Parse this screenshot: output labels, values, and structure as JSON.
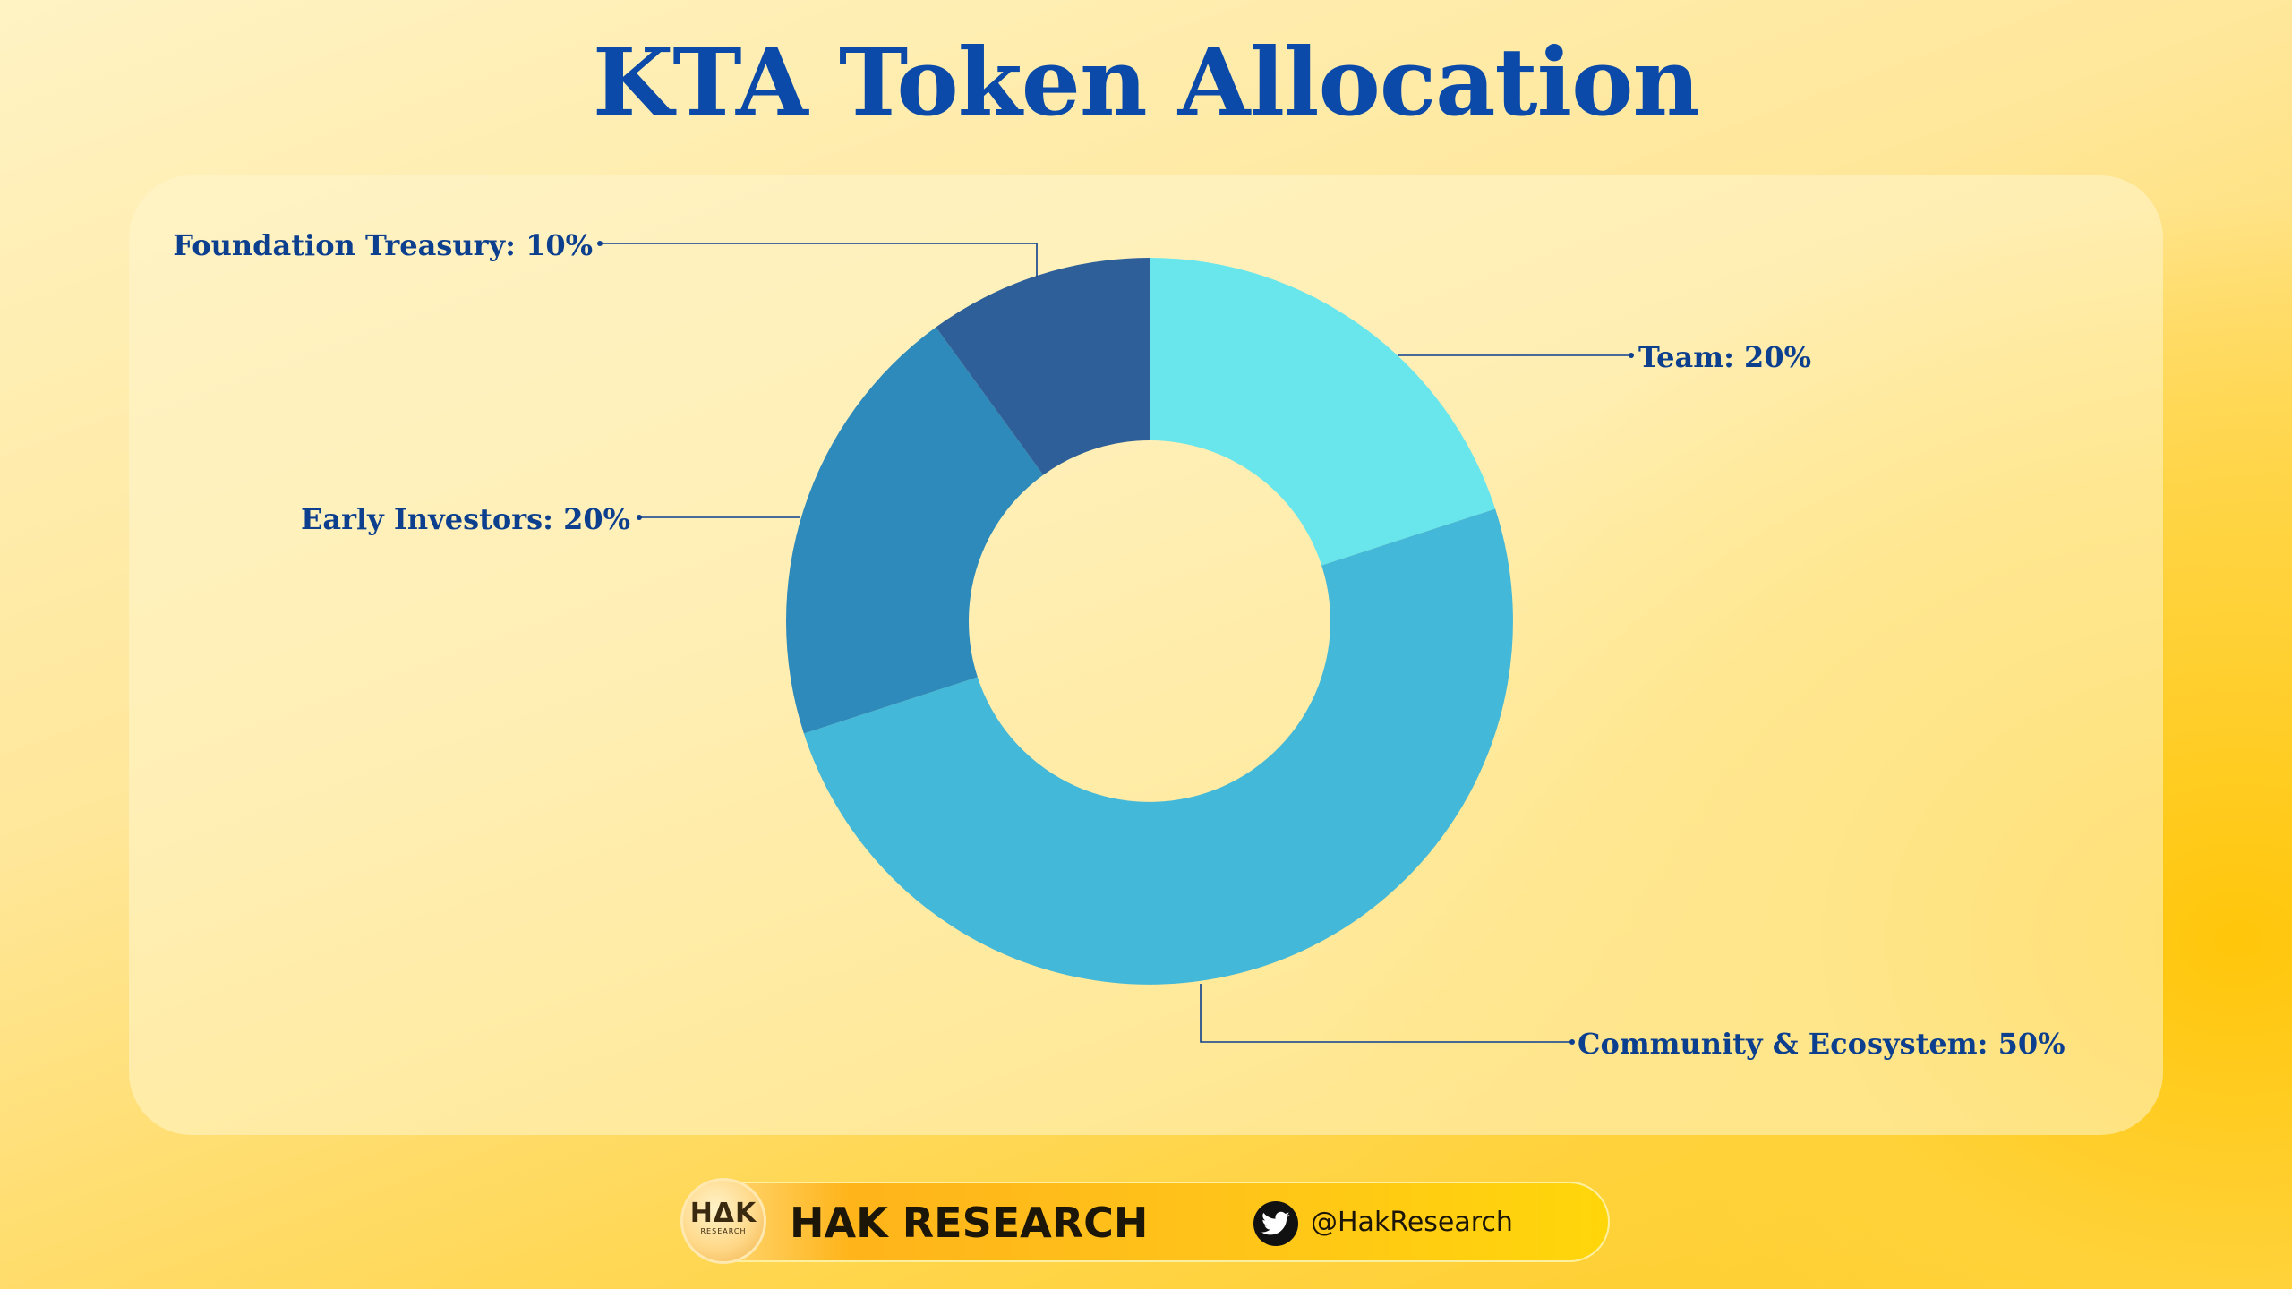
{
  "chart_data": {
    "type": "pie",
    "donut": true,
    "title": "KTA Token Allocation",
    "slices": [
      {
        "label": "Team: 20%",
        "name": "Team",
        "value": 20,
        "color": "#69e6eb"
      },
      {
        "label": "Community & Ecosystem: 50%",
        "name": "Community & Ecosystem",
        "value": 50,
        "color": "#43b8d8"
      },
      {
        "label": "Early Investors: 20%",
        "name": "Early Investors",
        "value": 20,
        "color": "#2d8aba"
      },
      {
        "label": "Foundation Treasury: 10%",
        "name": "Foundation Treasury",
        "value": 10,
        "color": "#2e5f98"
      }
    ],
    "label_color": "#0d3f8f",
    "start_angle": "12 o'clock",
    "direction": "clockwise"
  },
  "footer": {
    "logo_text": "HΔK",
    "logo_subtext": "RESEARCH",
    "brand": "HAK RESEARCH",
    "handle": "@HakResearch",
    "social_icon": "twitter-bird-icon"
  }
}
